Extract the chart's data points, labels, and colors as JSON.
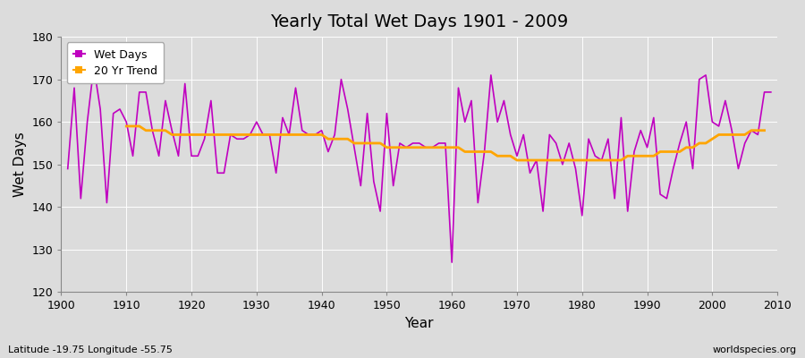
{
  "title": "Yearly Total Wet Days 1901 - 2009",
  "xlabel": "Year",
  "ylabel": "Wet Days",
  "footnote_left": "Latitude -19.75 Longitude -55.75",
  "footnote_right": "worldspecies.org",
  "wet_days_color": "#c000c0",
  "trend_color": "#FFA500",
  "background_color": "#dcdcdc",
  "plot_bg_color": "#dcdcdc",
  "ylim": [
    120,
    180
  ],
  "xlim": [
    1900,
    2010
  ],
  "years": [
    1901,
    1902,
    1903,
    1904,
    1905,
    1906,
    1907,
    1908,
    1909,
    1910,
    1911,
    1912,
    1913,
    1914,
    1915,
    1916,
    1917,
    1918,
    1919,
    1920,
    1921,
    1922,
    1923,
    1924,
    1925,
    1926,
    1927,
    1928,
    1929,
    1930,
    1931,
    1932,
    1933,
    1934,
    1935,
    1936,
    1937,
    1938,
    1939,
    1940,
    1941,
    1942,
    1943,
    1944,
    1945,
    1946,
    1947,
    1948,
    1949,
    1950,
    1951,
    1952,
    1953,
    1954,
    1955,
    1956,
    1957,
    1958,
    1959,
    1960,
    1961,
    1962,
    1963,
    1964,
    1965,
    1966,
    1967,
    1968,
    1969,
    1970,
    1971,
    1972,
    1973,
    1974,
    1975,
    1976,
    1977,
    1978,
    1979,
    1980,
    1981,
    1982,
    1983,
    1984,
    1985,
    1986,
    1987,
    1988,
    1989,
    1990,
    1991,
    1992,
    1993,
    1994,
    1995,
    1996,
    1997,
    1998,
    1999,
    2000,
    2001,
    2002,
    2003,
    2004,
    2005,
    2006,
    2007,
    2008,
    2009
  ],
  "wet_days": [
    149,
    168,
    142,
    160,
    173,
    163,
    141,
    162,
    163,
    160,
    152,
    167,
    167,
    158,
    152,
    165,
    158,
    152,
    169,
    152,
    152,
    156,
    165,
    148,
    148,
    157,
    156,
    156,
    157,
    160,
    157,
    157,
    148,
    161,
    157,
    168,
    158,
    157,
    157,
    158,
    153,
    157,
    170,
    163,
    154,
    145,
    162,
    146,
    139,
    162,
    145,
    155,
    154,
    155,
    155,
    154,
    154,
    155,
    155,
    127,
    168,
    160,
    165,
    141,
    153,
    171,
    160,
    165,
    157,
    152,
    157,
    148,
    151,
    139,
    157,
    155,
    150,
    155,
    149,
    138,
    156,
    152,
    151,
    156,
    142,
    161,
    139,
    153,
    158,
    154,
    161,
    143,
    142,
    149,
    155,
    160,
    149,
    170,
    171,
    160,
    159,
    165,
    158,
    149,
    155,
    158,
    157,
    167,
    167
  ],
  "trend": [
    null,
    null,
    null,
    null,
    null,
    null,
    null,
    null,
    null,
    159,
    159,
    159,
    158,
    158,
    158,
    158,
    157,
    157,
    157,
    157,
    157,
    157,
    157,
    157,
    157,
    157,
    157,
    157,
    157,
    157,
    157,
    157,
    157,
    157,
    157,
    157,
    157,
    157,
    157,
    157,
    156,
    156,
    156,
    156,
    155,
    155,
    155,
    155,
    155,
    154,
    154,
    154,
    154,
    154,
    154,
    154,
    154,
    154,
    154,
    154,
    154,
    153,
    153,
    153,
    153,
    153,
    152,
    152,
    152,
    151,
    151,
    151,
    151,
    151,
    151,
    151,
    151,
    151,
    151,
    151,
    151,
    151,
    151,
    151,
    151,
    151,
    152,
    152,
    152,
    152,
    152,
    153,
    153,
    153,
    153,
    154,
    154,
    155,
    155,
    156,
    157,
    157,
    157,
    157,
    157,
    158,
    158,
    158,
    null
  ]
}
